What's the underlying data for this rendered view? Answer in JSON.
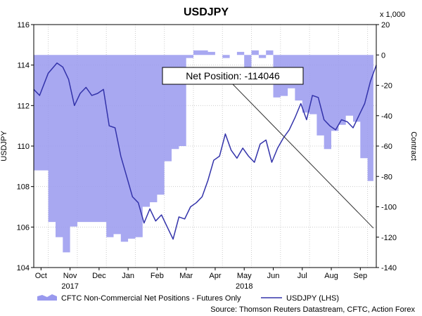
{
  "chart_data": {
    "type": "area",
    "title": "USDJPY",
    "ylabel": "USDJPY",
    "y2label": "Contract",
    "y2_multiplier": "x 1,000",
    "ylim": [
      104,
      116
    ],
    "y2lim": [
      -140,
      20
    ],
    "yticks": [
      104,
      106,
      108,
      110,
      112,
      114,
      116
    ],
    "y2ticks": [
      20,
      0,
      -20,
      -40,
      -60,
      -80,
      -100,
      -120,
      -140
    ],
    "months": [
      "Oct",
      "Nov",
      "Dec",
      "Jan",
      "Feb",
      "Mar",
      "Apr",
      "May",
      "Jun",
      "Jul",
      "Aug",
      "Sep"
    ],
    "years": [
      {
        "label": "2017",
        "month_index": 1
      },
      {
        "label": "2018",
        "month_index": 7
      }
    ],
    "grid": true,
    "legend_position": "bottom",
    "series": [
      {
        "name": "CFTC Non-Commercial Net Positions - Futures Only",
        "kind": "area",
        "axis": "right",
        "color": "#9999ee",
        "x": [
          0,
          0.25,
          0.5,
          0.75,
          1.0,
          1.25,
          1.5,
          1.75,
          2.0,
          2.25,
          2.5,
          2.75,
          3.0,
          3.25,
          3.5,
          3.75,
          4.0,
          4.25,
          4.5,
          4.75,
          5.0,
          5.25,
          5.5,
          5.75,
          6.0,
          6.25,
          6.5,
          6.75,
          7.0,
          7.25,
          7.5,
          7.75,
          8.0,
          8.25,
          8.5,
          8.75,
          9.0,
          9.25,
          9.5,
          9.75,
          10.0,
          10.25,
          10.5,
          10.75,
          11.0,
          11.25,
          11.5,
          11.7
        ],
        "values": [
          -76,
          -76,
          -110,
          -120,
          -130,
          -113,
          -110,
          -110,
          -110,
          -110,
          -120,
          -118,
          -123,
          -121,
          -120,
          -100,
          -97,
          -92,
          -70,
          -62,
          -60,
          -2,
          3,
          3,
          2,
          0,
          -2,
          0,
          2,
          -10,
          3,
          -2,
          3,
          -28,
          -27,
          -22,
          -30,
          -38,
          -39,
          -53,
          -62,
          -50,
          -46,
          -40,
          -44,
          -68,
          -83,
          -114
        ]
      },
      {
        "name": "USDJPY (LHS)",
        "kind": "line",
        "axis": "left",
        "color": "#3333aa",
        "x": [
          0,
          0.2,
          0.5,
          0.8,
          1.0,
          1.2,
          1.4,
          1.6,
          1.8,
          2.0,
          2.2,
          2.4,
          2.6,
          2.8,
          3.0,
          3.2,
          3.4,
          3.6,
          3.8,
          4.0,
          4.2,
          4.4,
          4.6,
          4.8,
          5.0,
          5.2,
          5.4,
          5.6,
          5.8,
          6.0,
          6.2,
          6.4,
          6.6,
          6.8,
          7.0,
          7.2,
          7.4,
          7.6,
          7.8,
          8.0,
          8.2,
          8.4,
          8.6,
          8.8,
          9.0,
          9.2,
          9.4,
          9.6,
          9.8,
          10.0,
          10.2,
          10.4,
          10.6,
          10.8,
          11.0,
          11.2,
          11.4,
          11.6,
          11.8
        ],
        "values": [
          112.8,
          112.5,
          113.6,
          114.1,
          113.9,
          113.3,
          112.0,
          112.6,
          112.9,
          112.5,
          112.6,
          112.8,
          111.0,
          110.9,
          109.5,
          108.5,
          107.5,
          107.2,
          106.2,
          106.9,
          106.3,
          106.6,
          106.0,
          105.4,
          106.5,
          106.4,
          107.0,
          107.2,
          107.5,
          108.3,
          109.3,
          109.5,
          110.6,
          109.8,
          109.4,
          109.9,
          109.5,
          109.2,
          110.1,
          110.3,
          109.2,
          109.9,
          110.4,
          110.8,
          111.4,
          112.1,
          111.3,
          112.5,
          112.4,
          111.3,
          111.0,
          110.8,
          111.3,
          111.2,
          110.9,
          111.5,
          112.1,
          113.2,
          114.0
        ]
      }
    ],
    "annotation": {
      "label": "Net Position: -114046",
      "target_x": 11.7,
      "target_value": -114,
      "axis": "right"
    }
  },
  "source": "Source: Thomson Reuters Datastream, CFTC, Action Forex"
}
